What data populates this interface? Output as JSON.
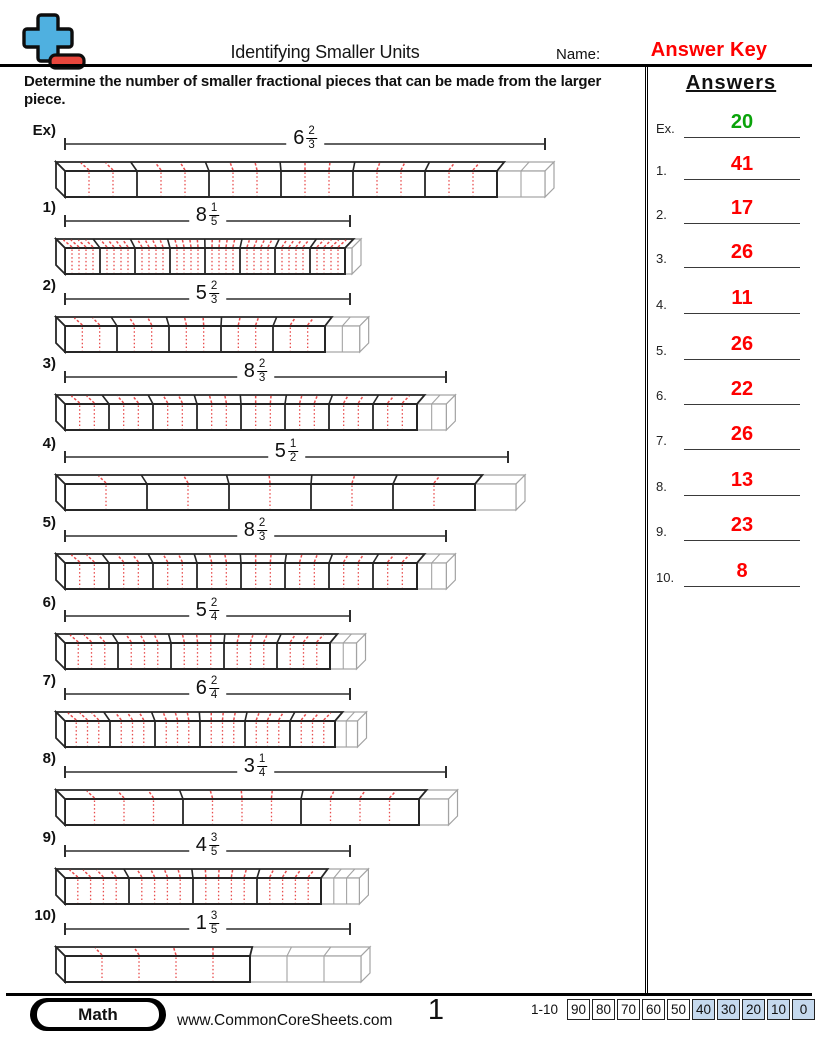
{
  "header": {
    "title": "Identifying Smaller Units",
    "name_label": "Name:",
    "name_value": "Answer Key",
    "answer_key_color": "#fe0000",
    "logo_colors": {
      "plus": "#4fb0e0",
      "minus": "#e8463c"
    }
  },
  "instructions": "Determine the number of smaller fractional pieces that can be made from the larger piece.",
  "problems": [
    {
      "id": "Ex)",
      "mixed": {
        "whole": "6",
        "numerator": "2",
        "denominator": "3"
      },
      "bar": {
        "whole_units": 6,
        "parts_per_unit": 3,
        "extra_parts": 2,
        "unit_width": 72
      },
      "line_width": 480,
      "answer": "20"
    },
    {
      "id": "1)",
      "mixed": {
        "whole": "8",
        "numerator": "1",
        "denominator": "5"
      },
      "bar": {
        "whole_units": 8,
        "parts_per_unit": 5,
        "extra_parts": 1,
        "unit_width": 35
      },
      "line_width": 285,
      "answer": "41"
    },
    {
      "id": "2)",
      "mixed": {
        "whole": "5",
        "numerator": "2",
        "denominator": "3"
      },
      "bar": {
        "whole_units": 5,
        "parts_per_unit": 3,
        "extra_parts": 2,
        "unit_width": 52
      },
      "line_width": 285,
      "answer": "17"
    },
    {
      "id": "3)",
      "mixed": {
        "whole": "8",
        "numerator": "2",
        "denominator": "3"
      },
      "bar": {
        "whole_units": 8,
        "parts_per_unit": 3,
        "extra_parts": 2,
        "unit_width": 44
      },
      "line_width": 381,
      "answer": "26"
    },
    {
      "id": "4)",
      "mixed": {
        "whole": "5",
        "numerator": "1",
        "denominator": "2"
      },
      "bar": {
        "whole_units": 5,
        "parts_per_unit": 2,
        "extra_parts": 1,
        "unit_width": 82
      },
      "line_width": 443,
      "answer": "11"
    },
    {
      "id": "5)",
      "mixed": {
        "whole": "8",
        "numerator": "2",
        "denominator": "3"
      },
      "bar": {
        "whole_units": 8,
        "parts_per_unit": 3,
        "extra_parts": 2,
        "unit_width": 44
      },
      "line_width": 381,
      "answer": "26"
    },
    {
      "id": "6)",
      "mixed": {
        "whole": "5",
        "numerator": "2",
        "denominator": "4"
      },
      "bar": {
        "whole_units": 5,
        "parts_per_unit": 4,
        "extra_parts": 2,
        "unit_width": 53
      },
      "line_width": 285,
      "answer": "22"
    },
    {
      "id": "7)",
      "mixed": {
        "whole": "6",
        "numerator": "2",
        "denominator": "4"
      },
      "bar": {
        "whole_units": 6,
        "parts_per_unit": 4,
        "extra_parts": 2,
        "unit_width": 45
      },
      "line_width": 285,
      "answer": "26"
    },
    {
      "id": "8)",
      "mixed": {
        "whole": "3",
        "numerator": "1",
        "denominator": "4"
      },
      "bar": {
        "whole_units": 3,
        "parts_per_unit": 4,
        "extra_parts": 1,
        "unit_width": 118
      },
      "line_width": 381,
      "answer": "13"
    },
    {
      "id": "9)",
      "mixed": {
        "whole": "4",
        "numerator": "3",
        "denominator": "5"
      },
      "bar": {
        "whole_units": 4,
        "parts_per_unit": 5,
        "extra_parts": 3,
        "unit_width": 64
      },
      "line_width": 285,
      "answer": "23"
    },
    {
      "id": "10)",
      "mixed": {
        "whole": "1",
        "numerator": "3",
        "denominator": "5"
      },
      "bar": {
        "whole_units": 1,
        "parts_per_unit": 5,
        "extra_parts": 3,
        "unit_width": 185
      },
      "line_width": 285,
      "answer": "8"
    }
  ],
  "answers_panel": {
    "title": "Answers",
    "items": [
      {
        "label": "Ex.",
        "value": "20",
        "color": "#0aa30a"
      },
      {
        "label": "1.",
        "value": "41",
        "color": "#fe0000"
      },
      {
        "label": "2.",
        "value": "17",
        "color": "#fe0000"
      },
      {
        "label": "3.",
        "value": "26",
        "color": "#fe0000"
      },
      {
        "label": "4.",
        "value": "11",
        "color": "#fe0000"
      },
      {
        "label": "5.",
        "value": "26",
        "color": "#fe0000"
      },
      {
        "label": "6.",
        "value": "22",
        "color": "#fe0000"
      },
      {
        "label": "7.",
        "value": "26",
        "color": "#fe0000"
      },
      {
        "label": "8.",
        "value": "13",
        "color": "#fe0000"
      },
      {
        "label": "9.",
        "value": "23",
        "color": "#fe0000"
      },
      {
        "label": "10.",
        "value": "8",
        "color": "#fe0000"
      }
    ]
  },
  "footer": {
    "subject": "Math",
    "website": "www.CommonCoreSheets.com",
    "page_number": "1",
    "score_table": {
      "range_label": "1-10",
      "scores": [
        "90",
        "80",
        "70",
        "60",
        "50",
        "40",
        "30",
        "20",
        "10",
        "0"
      ],
      "highlight_from_index": 5,
      "highlight_color": "#c5d9ee"
    }
  },
  "figure_colors": {
    "unit_outline": "#262626",
    "subdivision_red": "#e84b4b",
    "remainder_gray": "#a3a3a3"
  }
}
